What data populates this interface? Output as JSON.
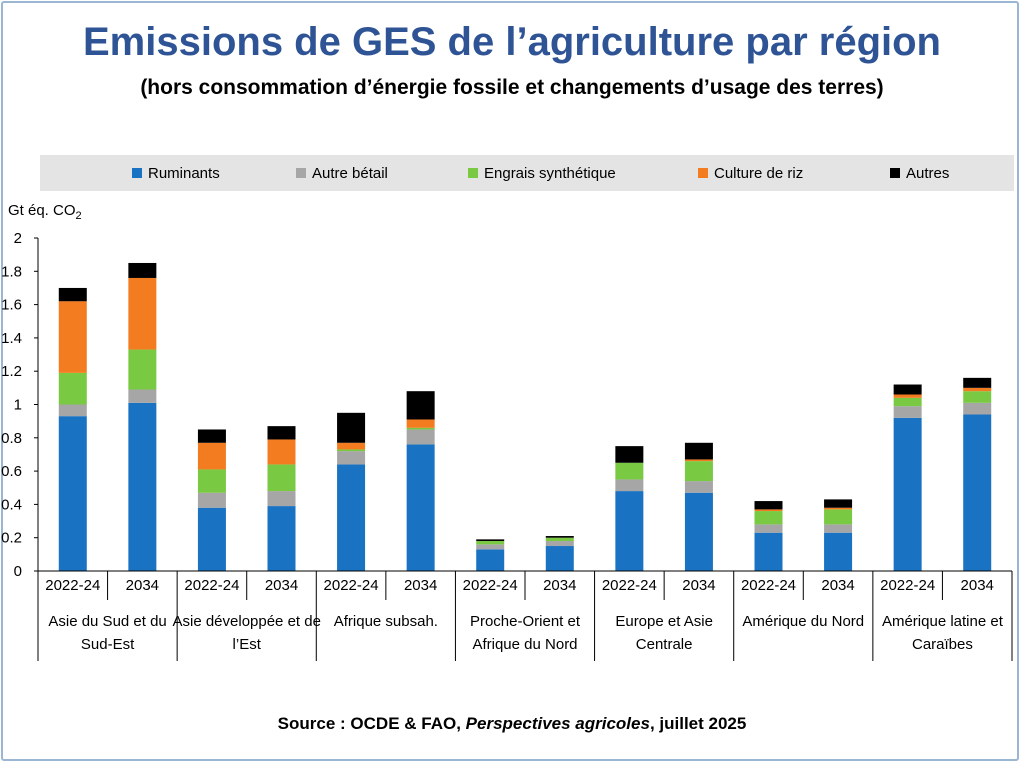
{
  "title": "Emissions de GES de l’agriculture par région",
  "subtitle": "(hors consommation d’énergie fossile et changements d’usage des terres)",
  "source": {
    "prefix": "Source : OCDE & FAO, ",
    "publication": "Perspectives agricoles",
    "suffix": ", juillet 2025"
  },
  "colors": {
    "title": "#2f5496",
    "ruminants": "#1a73c2",
    "autre_betail": "#a6a6a6",
    "engrais": "#7ac943",
    "riz": "#f47c20",
    "autres": "#000000"
  },
  "chart_data": {
    "type": "bar",
    "stacked": true,
    "title": "Emissions de GES de l’agriculture par région",
    "ylabel_main": "Gt éq. CO",
    "ylabel_sub": "2",
    "ylim": [
      0,
      2
    ],
    "yticks": [
      "0",
      "0.2",
      "0.4",
      "0.6",
      "0.8",
      "1",
      "1.2",
      "1.4",
      "1.6",
      "1.8",
      "2"
    ],
    "legend": [
      {
        "name": "Ruminants",
        "color_key": "ruminants"
      },
      {
        "name": "Autre bétail",
        "color_key": "autre_betail"
      },
      {
        "name": "Engrais synthétique",
        "color_key": "engrais"
      },
      {
        "name": "Culture de riz",
        "color_key": "riz"
      },
      {
        "name": "Autres",
        "color_key": "autres"
      }
    ],
    "groups": [
      {
        "lines": [
          "Asie du Sud et du",
          "Sud-Est"
        ]
      },
      {
        "lines": [
          "Asie développée et de",
          "l’Est"
        ]
      },
      {
        "lines": [
          "Afrique subsah."
        ]
      },
      {
        "lines": [
          "Proche-Orient et",
          "Afrique du Nord"
        ]
      },
      {
        "lines": [
          "Europe et Asie",
          "Centrale"
        ]
      },
      {
        "lines": [
          "Amérique du Nord"
        ]
      },
      {
        "lines": [
          "Amérique latine et",
          "Caraïbes"
        ]
      }
    ],
    "periods": [
      "2022-24",
      "2034"
    ],
    "categories": [
      "Asie du Sud et du Sud-Est 2022-24",
      "Asie du Sud et du Sud-Est 2034",
      "Asie développée et de l’Est 2022-24",
      "Asie développée et de l’Est 2034",
      "Afrique subsah. 2022-24",
      "Afrique subsah. 2034",
      "Proche-Orient et Afrique du Nord 2022-24",
      "Proche-Orient et Afrique du Nord 2034",
      "Europe et Asie Centrale 2022-24",
      "Europe et Asie Centrale 2034",
      "Amérique du Nord 2022-24",
      "Amérique du Nord 2034",
      "Amérique latine et Caraïbes 2022-24",
      "Amérique latine et Caraïbes 2034"
    ],
    "series": [
      {
        "name": "Ruminants",
        "values": [
          0.93,
          1.01,
          0.38,
          0.39,
          0.64,
          0.76,
          0.13,
          0.15,
          0.48,
          0.47,
          0.23,
          0.23,
          0.92,
          0.94
        ]
      },
      {
        "name": "Autre bétail",
        "values": [
          0.07,
          0.08,
          0.09,
          0.09,
          0.08,
          0.09,
          0.03,
          0.03,
          0.07,
          0.07,
          0.05,
          0.05,
          0.07,
          0.07
        ]
      },
      {
        "name": "Engrais synthétique",
        "values": [
          0.19,
          0.24,
          0.14,
          0.16,
          0.01,
          0.01,
          0.02,
          0.02,
          0.1,
          0.12,
          0.08,
          0.09,
          0.05,
          0.07
        ]
      },
      {
        "name": "Culture de riz",
        "values": [
          0.43,
          0.43,
          0.16,
          0.15,
          0.04,
          0.05,
          0.0,
          0.0,
          0.0,
          0.01,
          0.01,
          0.01,
          0.02,
          0.02
        ]
      },
      {
        "name": "Autres",
        "values": [
          0.08,
          0.09,
          0.08,
          0.08,
          0.18,
          0.17,
          0.01,
          0.01,
          0.1,
          0.1,
          0.05,
          0.05,
          0.06,
          0.06
        ]
      }
    ]
  }
}
